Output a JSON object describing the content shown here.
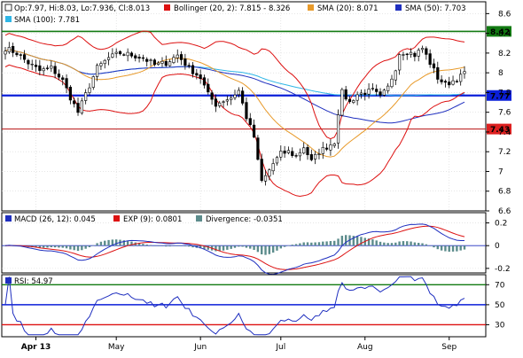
{
  "chart_data": [
    {
      "type": "candlestick",
      "panel": "price",
      "ohlc_legend": "Op:7.97, Hi:8.03, Lo:7.936, Cl:8.013",
      "legend": [
        {
          "label": "Bollinger (20, 2): 7.815 - 8.326",
          "color": "#dd1111"
        },
        {
          "label": "SMA (20): 8.071",
          "color": "#e89a2a"
        },
        {
          "label": "SMA (50): 7.703",
          "color": "#1f2fbf"
        },
        {
          "label": "SMA (100): 7.781",
          "color": "#2fb6e6"
        }
      ],
      "ylim": [
        6.6,
        8.72
      ],
      "yticks": [
        6.6,
        6.8,
        7,
        7.2,
        7.4,
        7.6,
        7.8,
        8,
        8.2,
        8.4,
        8.6
      ],
      "ytick_labels": [
        "6.6",
        "6.8",
        "7",
        "7.2",
        "7.4",
        "7.6",
        "7.8",
        "8",
        "8.2",
        "8.4",
        "8.6"
      ],
      "levels": [
        {
          "value": 8.42,
          "label": "8.42",
          "color": "#127a12",
          "badge": "#127a12",
          "width": 1.6
        },
        {
          "value": 7.77,
          "label": "7.77",
          "color": "#0b1fd9",
          "badge": "#0b1fd9",
          "width": 2.2
        },
        {
          "value": 7.43,
          "label": "7.43",
          "color": "#b71010",
          "badge": "#dd2020",
          "width": 1
        }
      ],
      "x_labels": [
        {
          "label": "Apr 13",
          "index": 8
        },
        {
          "label": "May",
          "index": 29
        },
        {
          "label": "Jun",
          "index": 51
        },
        {
          "label": "Jul",
          "index": 72
        },
        {
          "label": "Aug",
          "index": 94
        },
        {
          "label": "Sep",
          "index": 116
        }
      ],
      "n_bars": 121,
      "candle_color": "#000000",
      "close_anchors": [
        [
          0,
          8.25
        ],
        [
          3,
          8.2
        ],
        [
          6,
          8.1
        ],
        [
          9,
          8.02
        ],
        [
          12,
          8.05
        ],
        [
          15,
          7.92
        ],
        [
          17,
          7.75
        ],
        [
          19,
          7.6
        ],
        [
          21,
          7.78
        ],
        [
          24,
          8.05
        ],
        [
          27,
          8.15
        ],
        [
          30,
          8.2
        ],
        [
          33,
          8.18
        ],
        [
          36,
          8.15
        ],
        [
          39,
          8.08
        ],
        [
          42,
          8.1
        ],
        [
          45,
          8.18
        ],
        [
          48,
          8.05
        ],
        [
          51,
          7.95
        ],
        [
          53,
          7.78
        ],
        [
          55,
          7.68
        ],
        [
          57,
          7.72
        ],
        [
          59,
          7.75
        ],
        [
          61,
          7.82
        ],
        [
          63,
          7.55
        ],
        [
          65,
          7.35
        ],
        [
          66,
          7.1
        ],
        [
          67,
          6.9
        ],
        [
          68,
          6.95
        ],
        [
          70,
          7.08
        ],
        [
          72,
          7.18
        ],
        [
          74,
          7.2
        ],
        [
          76,
          7.15
        ],
        [
          78,
          7.25
        ],
        [
          80,
          7.1
        ],
        [
          82,
          7.2
        ],
        [
          84,
          7.25
        ],
        [
          86,
          7.3
        ],
        [
          87,
          7.6
        ],
        [
          88,
          7.8
        ],
        [
          90,
          7.7
        ],
        [
          92,
          7.78
        ],
        [
          94,
          7.8
        ],
        [
          96,
          7.82
        ],
        [
          98,
          7.75
        ],
        [
          100,
          7.85
        ],
        [
          102,
          8.05
        ],
        [
          103,
          8.2
        ],
        [
          105,
          8.22
        ],
        [
          107,
          8.18
        ],
        [
          109,
          8.25
        ],
        [
          111,
          8.1
        ],
        [
          113,
          7.95
        ],
        [
          115,
          7.88
        ],
        [
          117,
          7.92
        ],
        [
          119,
          7.96
        ],
        [
          120,
          8.013
        ]
      ]
    },
    {
      "type": "line",
      "panel": "macd",
      "legend": [
        {
          "label": "MACD (26, 12): 0.045",
          "color": "#1f2fbf"
        },
        {
          "label": "EXP (9): 0.0801",
          "color": "#dd1111"
        },
        {
          "label": "Divergence: -0.0351",
          "color": "#5c8c8c"
        }
      ],
      "ylim": [
        -0.24,
        0.29
      ],
      "yticks": [
        -0.2,
        0,
        0.2
      ],
      "ytick_labels": [
        "-0.2",
        "0",
        "0.2"
      ],
      "zero_label": "0",
      "zero_color": "#1f2fbf"
    },
    {
      "type": "line",
      "panel": "rsi",
      "legend": [
        {
          "label": "RSI: 54.97",
          "color": "#1f2fbf"
        }
      ],
      "ylim": [
        18,
        80
      ],
      "levels": [
        {
          "value": 70,
          "label": "70",
          "color": "#127a12"
        },
        {
          "value": 50,
          "label": "50",
          "color": "#0b1fd9"
        },
        {
          "value": 30,
          "label": "30",
          "color": "#dd1111"
        }
      ],
      "line_color": "#1f2fbf"
    }
  ]
}
